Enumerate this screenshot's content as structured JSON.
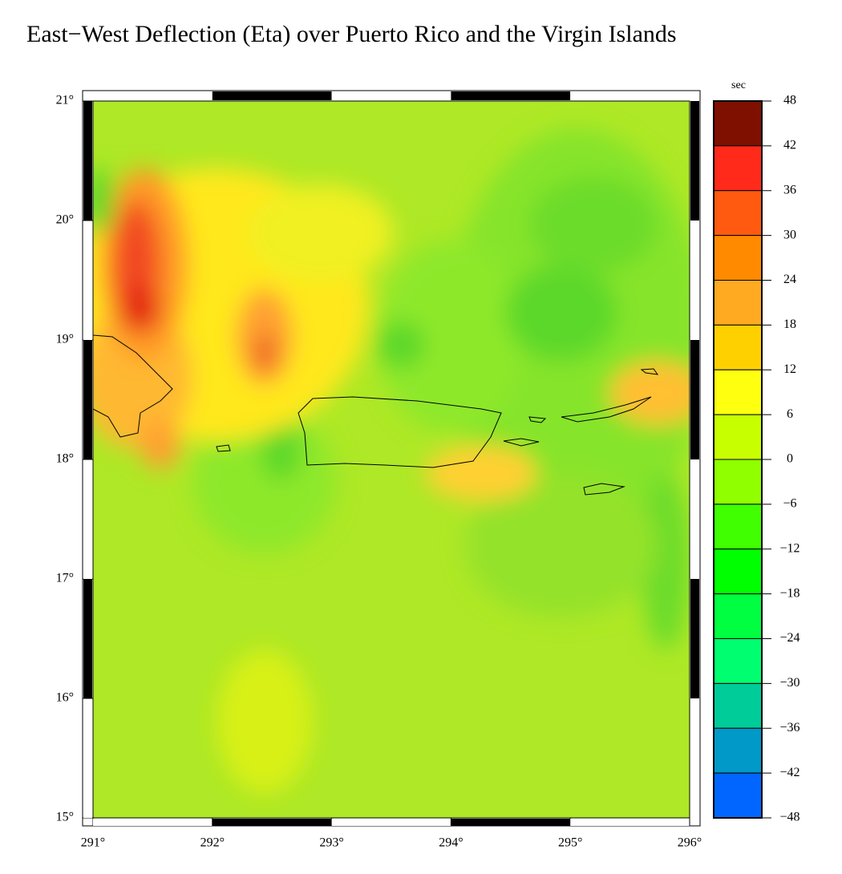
{
  "title": "East−West Deflection (Eta) over Puerto Rico and the Virgin Islands",
  "map": {
    "xlim": [
      291,
      296
    ],
    "ylim": [
      15,
      21
    ],
    "xticks": [
      {
        "value": 291,
        "label": "291°"
      },
      {
        "value": 292,
        "label": "292°"
      },
      {
        "value": 293,
        "label": "293°"
      },
      {
        "value": 294,
        "label": "294°"
      },
      {
        "value": 295,
        "label": "295°"
      },
      {
        "value": 296,
        "label": "296°"
      }
    ],
    "yticks": [
      {
        "value": 15,
        "label": "15°"
      },
      {
        "value": 16,
        "label": "16°"
      },
      {
        "value": 17,
        "label": "17°"
      },
      {
        "value": 18,
        "label": "18°"
      },
      {
        "value": 19,
        "label": "19°"
      },
      {
        "value": 20,
        "label": "20°"
      },
      {
        "value": 21,
        "label": "21°"
      }
    ]
  },
  "colorbar": {
    "unit": "sec",
    "ticks": [
      48,
      42,
      36,
      30,
      24,
      18,
      12,
      6,
      0,
      {
        "value": -6,
        "label": "−6"
      },
      {
        "value": -12,
        "label": "−12"
      },
      {
        "value": -18,
        "label": "−18"
      },
      {
        "value": -24,
        "label": "−24"
      },
      {
        "value": -30,
        "label": "−30"
      },
      {
        "value": -36,
        "label": "−36"
      },
      {
        "value": -42,
        "label": "−42"
      },
      {
        "value": -48,
        "label": "−48"
      }
    ],
    "colors": [
      "#7f1000",
      "#ff2a1a",
      "#ff5a10",
      "#ff8a00",
      "#ffaa20",
      "#ffd000",
      "#ffff10",
      "#c8ff00",
      "#90ff00",
      "#40ff00",
      "#00ff00",
      "#00ff40",
      "#00ff70",
      "#00cc99",
      "#0099c8",
      "#0066ff"
    ]
  }
}
